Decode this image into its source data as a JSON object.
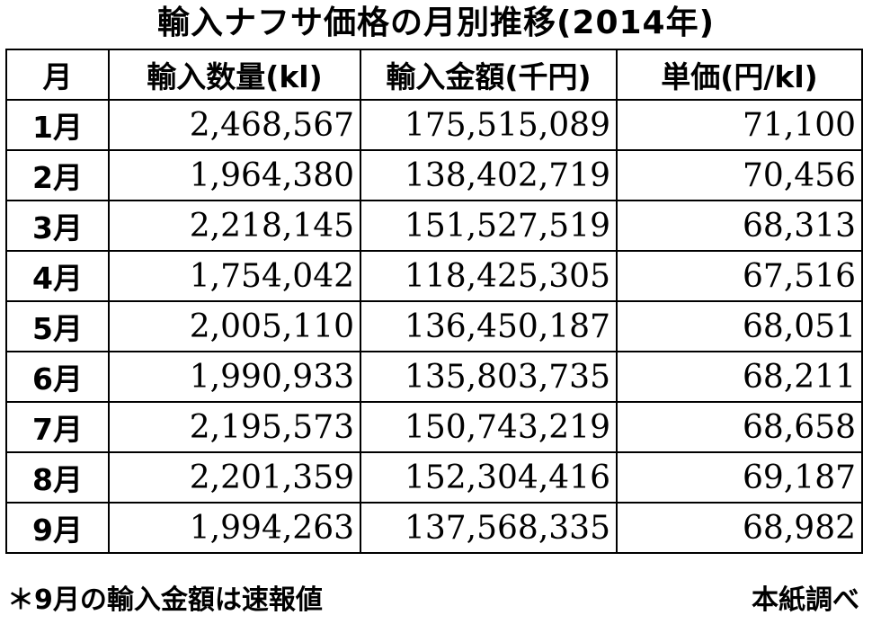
{
  "title": "輸入ナフサ価格の月別推移(2014年)",
  "table": {
    "headers": [
      "月",
      "輸入数量(kl)",
      "輸入金額(千円)",
      "単価(円/kl)"
    ],
    "rows": [
      {
        "month": "1月",
        "volume": "2,468,567",
        "amount": "175,515,089",
        "unit_price": "71,100"
      },
      {
        "month": "2月",
        "volume": "1,964,380",
        "amount": "138,402,719",
        "unit_price": "70,456"
      },
      {
        "month": "3月",
        "volume": "2,218,145",
        "amount": "151,527,519",
        "unit_price": "68,313"
      },
      {
        "month": "4月",
        "volume": "1,754,042",
        "amount": "118,425,305",
        "unit_price": "67,516"
      },
      {
        "month": "5月",
        "volume": "2,005,110",
        "amount": "136,450,187",
        "unit_price": "68,051"
      },
      {
        "month": "6月",
        "volume": "1,990,933",
        "amount": "135,803,735",
        "unit_price": "68,211"
      },
      {
        "month": "7月",
        "volume": "2,195,573",
        "amount": "150,743,219",
        "unit_price": "68,658"
      },
      {
        "month": "8月",
        "volume": "2,201,359",
        "amount": "152,304,416",
        "unit_price": "69,187"
      },
      {
        "month": "9月",
        "volume": "1,994,263",
        "amount": "137,568,335",
        "unit_price": "68,982"
      }
    ]
  },
  "footnote": "＊9月の輸入金額は速報値",
  "source": "本紙調べ"
}
